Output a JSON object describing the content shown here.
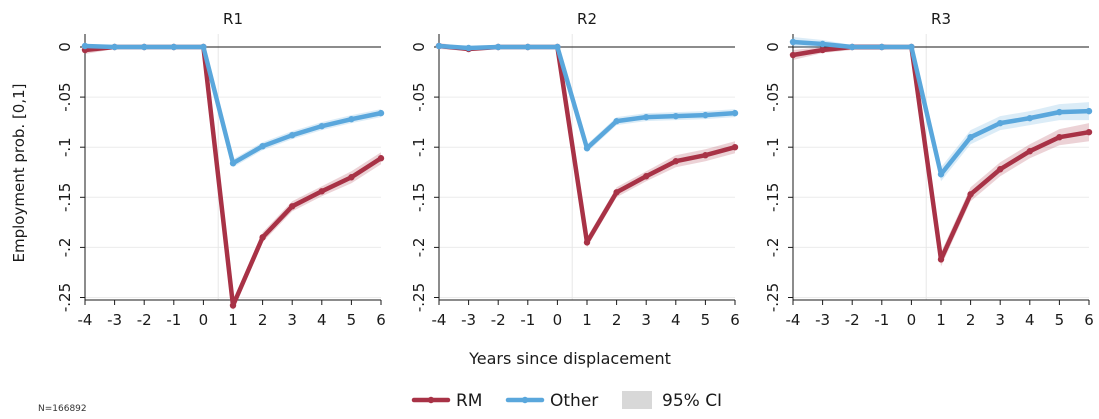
{
  "chart_data": {
    "type": "line",
    "xlabel": "Years since displacement",
    "ylabel": "Employment prob. [0,1]",
    "ylim": [
      -0.3,
      0.01
    ],
    "yticks": [
      0,
      -0.05,
      -0.1,
      -0.15,
      -0.2,
      -0.25
    ],
    "ytick_labels": [
      "0",
      "-.05",
      "-.1",
      "-.15",
      "-.2",
      "-.25"
    ],
    "x": [
      -4,
      -3,
      -2,
      -1,
      0,
      1,
      2,
      3,
      4,
      5,
      6
    ],
    "xtick_labels": [
      "-4",
      "-3",
      "-2",
      "-1",
      "0",
      "1",
      "2",
      "3",
      "4",
      "5",
      "6"
    ],
    "reference_line_x": 0.5,
    "grid": true,
    "legend_position": "bottom-center",
    "legend": [
      "RM",
      "Other",
      "95% CI"
    ],
    "colors": {
      "RM": "#a83246",
      "Other": "#5aa7dc",
      "ci": "#d8d8d8"
    },
    "panels": [
      {
        "title": "R1",
        "series": [
          {
            "name": "RM",
            "values": [
              -0.003,
              0,
              0,
              0,
              0,
              -0.258,
              -0.19,
              -0.159,
              -0.144,
              -0.13,
              -0.111
            ],
            "ci_low": [
              -0.007,
              -0.002,
              -0.002,
              -0.002,
              0,
              -0.263,
              -0.195,
              -0.164,
              -0.149,
              -0.136,
              -0.117
            ],
            "ci_high": [
              0.001,
              0.002,
              0.002,
              0.002,
              0,
              -0.253,
              -0.185,
              -0.154,
              -0.139,
              -0.124,
              -0.105
            ]
          },
          {
            "name": "Other",
            "values": [
              0.001,
              0,
              0,
              0,
              0,
              -0.116,
              -0.099,
              -0.088,
              -0.079,
              -0.072,
              -0.066
            ],
            "ci_low": [
              -0.001,
              -0.001,
              -0.001,
              -0.001,
              0,
              -0.12,
              -0.103,
              -0.092,
              -0.083,
              -0.076,
              -0.07
            ],
            "ci_high": [
              0.003,
              0.001,
              0.001,
              0.001,
              0,
              -0.112,
              -0.095,
              -0.084,
              -0.075,
              -0.068,
              -0.062
            ]
          }
        ]
      },
      {
        "title": "R2",
        "series": [
          {
            "name": "RM",
            "values": [
              0.001,
              -0.002,
              0,
              0,
              0,
              -0.195,
              -0.145,
              -0.129,
              -0.114,
              -0.108,
              -0.1
            ],
            "ci_low": [
              -0.002,
              -0.004,
              -0.002,
              -0.002,
              0,
              -0.2,
              -0.15,
              -0.134,
              -0.12,
              -0.114,
              -0.106
            ],
            "ci_high": [
              0.004,
              0,
              0.002,
              0.002,
              0,
              -0.19,
              -0.14,
              -0.124,
              -0.108,
              -0.102,
              -0.094
            ]
          },
          {
            "name": "Other",
            "values": [
              0.001,
              -0.001,
              0,
              0,
              0,
              -0.101,
              -0.074,
              -0.07,
              -0.069,
              -0.068,
              -0.066
            ],
            "ci_low": [
              -0.001,
              -0.002,
              -0.001,
              -0.001,
              0,
              -0.105,
              -0.078,
              -0.074,
              -0.073,
              -0.072,
              -0.07
            ],
            "ci_high": [
              0.003,
              0,
              0.001,
              0.001,
              0,
              -0.097,
              -0.07,
              -0.066,
              -0.065,
              -0.064,
              -0.062
            ]
          }
        ]
      },
      {
        "title": "R3",
        "series": [
          {
            "name": "RM",
            "values": [
              -0.008,
              -0.003,
              0,
              0,
              0,
              -0.212,
              -0.147,
              -0.122,
              -0.104,
              -0.09,
              -0.085
            ],
            "ci_low": [
              -0.013,
              -0.006,
              -0.003,
              -0.003,
              0,
              -0.219,
              -0.154,
              -0.129,
              -0.111,
              -0.098,
              -0.094
            ],
            "ci_high": [
              -0.003,
              0,
              0.003,
              0.003,
              0,
              -0.205,
              -0.14,
              -0.115,
              -0.097,
              -0.082,
              -0.076
            ]
          },
          {
            "name": "Other",
            "values": [
              0.005,
              0.003,
              0,
              0,
              0,
              -0.127,
              -0.09,
              -0.076,
              -0.071,
              -0.065,
              -0.064
            ],
            "ci_low": [
              0.0,
              -0.001,
              -0.002,
              -0.002,
              0,
              -0.134,
              -0.097,
              -0.083,
              -0.078,
              -0.073,
              -0.073
            ],
            "ci_high": [
              0.01,
              0.007,
              0.002,
              0.002,
              0,
              -0.12,
              -0.083,
              -0.069,
              -0.064,
              -0.057,
              -0.055
            ]
          }
        ]
      }
    ]
  },
  "note": "N=166892"
}
